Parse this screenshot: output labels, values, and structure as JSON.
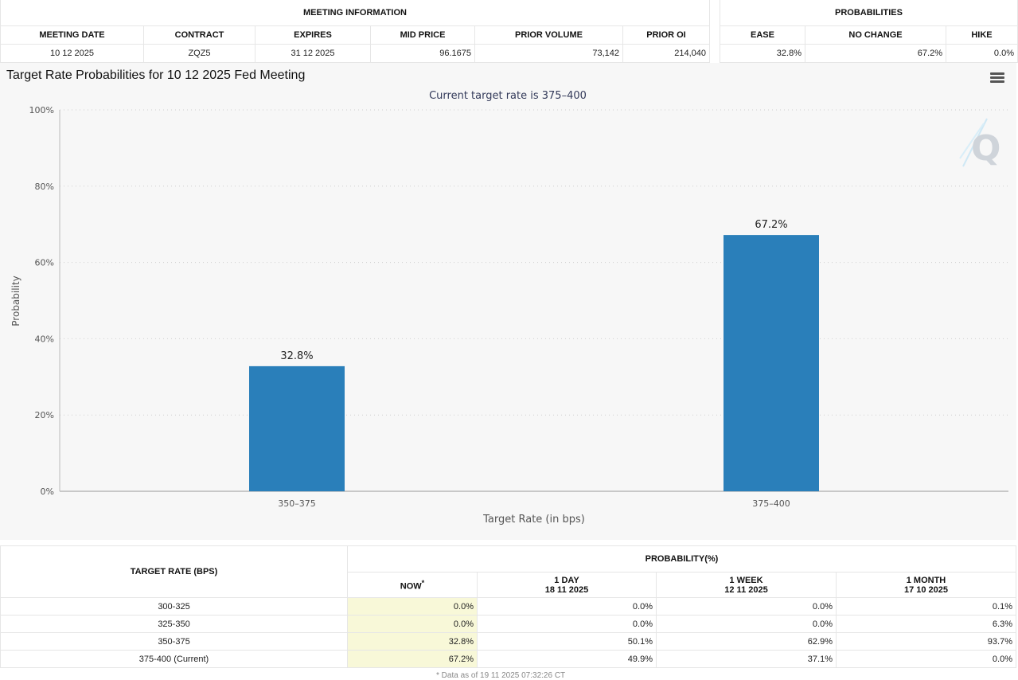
{
  "meeting_info": {
    "title": "MEETING INFORMATION",
    "headers": [
      "MEETING DATE",
      "CONTRACT",
      "EXPIRES",
      "MID PRICE",
      "PRIOR VOLUME",
      "PRIOR OI"
    ],
    "values": [
      "10 12 2025",
      "ZQZ5",
      "31 12 2025",
      "96.1675",
      "73,142",
      "214,040"
    ]
  },
  "probabilities": {
    "title": "PROBABILITIES",
    "headers": [
      "EASE",
      "NO CHANGE",
      "HIKE"
    ],
    "values": [
      "32.8%",
      "67.2%",
      "0.0%"
    ]
  },
  "chart": {
    "title": "Target Rate Probabilities for 10 12 2025 Fed Meeting",
    "subtitle": "Current target rate is 375–400",
    "menu_icon": "hamburger-menu-icon",
    "watermark": "Q"
  },
  "chart_data": {
    "type": "bar",
    "categories": [
      "350–375",
      "375–400"
    ],
    "values": [
      32.8,
      67.2
    ],
    "data_labels": [
      "32.8%",
      "67.2%"
    ],
    "xlabel": "Target Rate (in bps)",
    "ylabel": "Probability",
    "ylim": [
      0,
      100
    ],
    "yticks": [
      "0%",
      "20%",
      "40%",
      "60%",
      "80%",
      "100%"
    ],
    "grid": true,
    "bar_color": "#2a7fba"
  },
  "history": {
    "target_rate_header": "TARGET RATE (BPS)",
    "probability_header": "PROBABILITY(%)",
    "columns": [
      {
        "label": "NOW",
        "sup": "*",
        "date": ""
      },
      {
        "label": "1 DAY",
        "date": "18 11 2025"
      },
      {
        "label": "1 WEEK",
        "date": "12 11 2025"
      },
      {
        "label": "1 MONTH",
        "date": "17 10 2025"
      }
    ],
    "rows": [
      {
        "rate": "300-325",
        "values": [
          "0.0%",
          "0.0%",
          "0.0%",
          "0.1%"
        ]
      },
      {
        "rate": "325-350",
        "values": [
          "0.0%",
          "0.0%",
          "0.0%",
          "6.3%"
        ]
      },
      {
        "rate": "350-375",
        "values": [
          "32.8%",
          "50.1%",
          "62.9%",
          "93.7%"
        ]
      },
      {
        "rate": "375-400 (Current)",
        "values": [
          "67.2%",
          "49.9%",
          "37.1%",
          "0.0%"
        ]
      }
    ],
    "footnote": "* Data as of 19 11 2025 07:32:26 CT"
  }
}
